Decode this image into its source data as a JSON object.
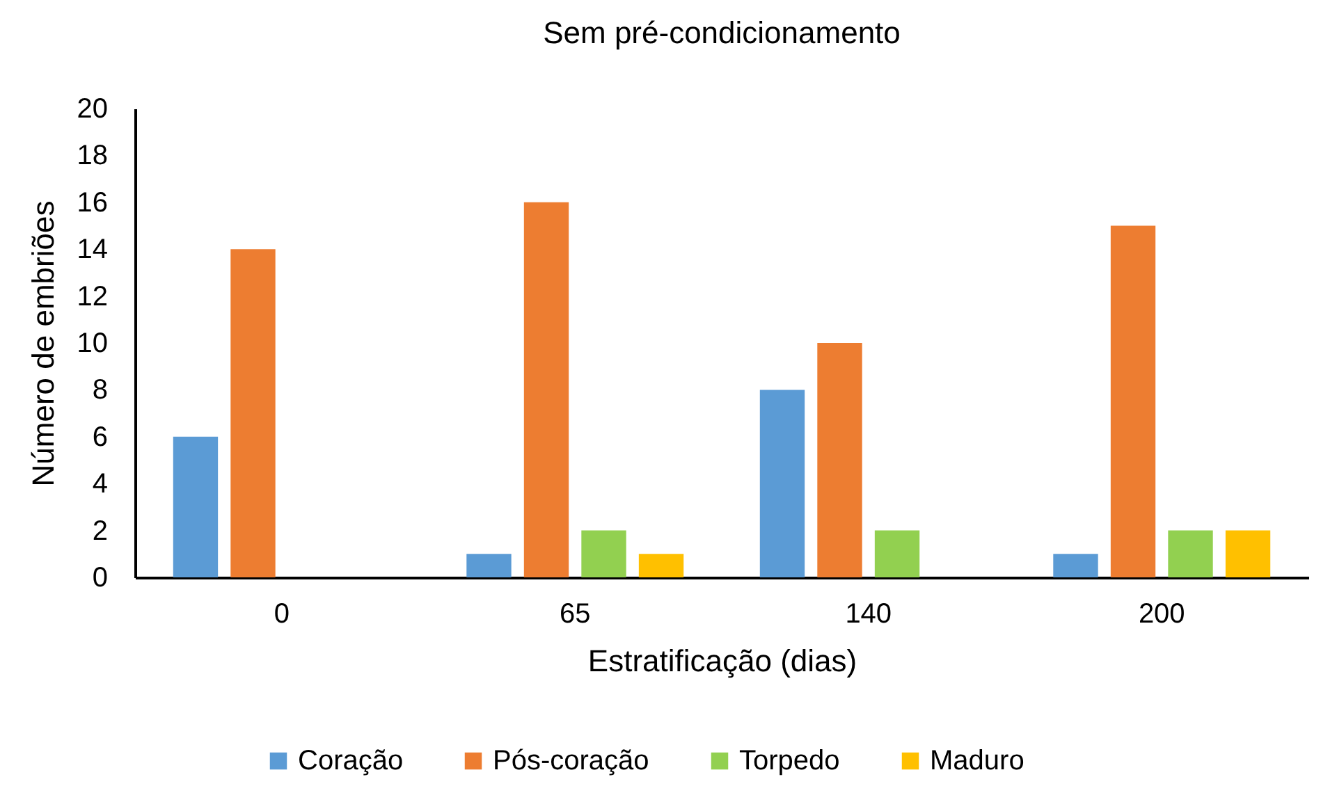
{
  "chart_data": {
    "type": "bar",
    "title": "Sem pré-condicionamento",
    "xlabel": "Estratificação (dias)",
    "ylabel": "Número de embriões",
    "categories": [
      "0",
      "65",
      "140",
      "200"
    ],
    "series": [
      {
        "name": "Coração",
        "color": "#5b9bd5",
        "values": [
          6,
          1,
          8,
          1
        ]
      },
      {
        "name": "Pós-coração",
        "color": "#ed7d31",
        "values": [
          14,
          16,
          10,
          15
        ]
      },
      {
        "name": "Torpedo",
        "color": "#92d050",
        "values": [
          0,
          2,
          2,
          2
        ]
      },
      {
        "name": "Maduro",
        "color": "#ffc000",
        "values": [
          0,
          1,
          0,
          2
        ]
      }
    ],
    "ylim": [
      0,
      20
    ],
    "yticks": [
      0,
      2,
      4,
      6,
      8,
      10,
      12,
      14,
      16,
      18,
      20
    ],
    "legend": "bottom"
  }
}
